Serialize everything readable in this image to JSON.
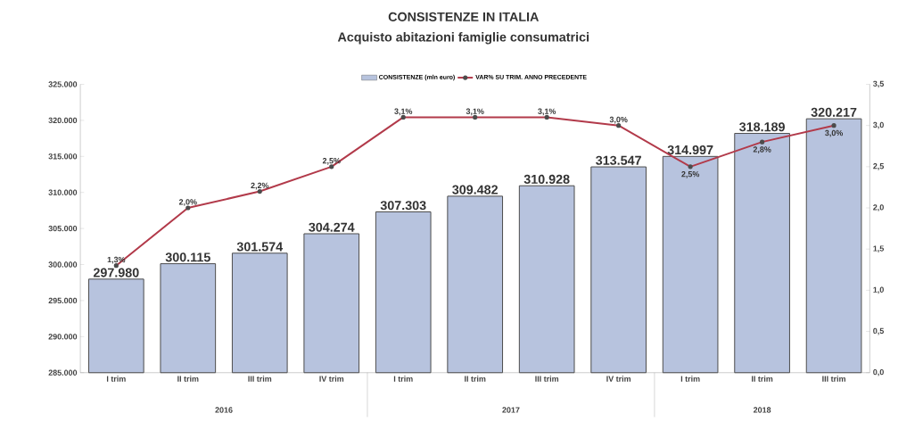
{
  "chart_data": {
    "type": "bar",
    "title": "CONSISTENZE IN ITALIA",
    "subtitle": "Acquisto abitazioni famiglie consumatrici",
    "categories": [
      "I trim",
      "II trim",
      "III trim",
      "IV trim",
      "I trim",
      "II trim",
      "III trim",
      "IV trim",
      "I trim",
      "II trim",
      "III trim"
    ],
    "series": [
      {
        "name": "CONSISTENZE (mln euro)",
        "color": "#b7c3de",
        "values": [
          297980,
          300115,
          301574,
          304274,
          307303,
          309482,
          310928,
          313547,
          314997,
          318189,
          320217
        ],
        "value_labels": [
          "297.980",
          "300.115",
          "301.574",
          "304.274",
          "307.303",
          "309.482",
          "310.928",
          "313.547",
          "314.997",
          "318.189",
          "320.217"
        ]
      },
      {
        "name": "VAR% SU TRIM. ANNO PRECEDENTE",
        "type": "line",
        "axis": "y2",
        "color": "#b23a4a",
        "marker": "circle",
        "values": [
          1.3,
          2.0,
          2.2,
          2.5,
          3.1,
          3.1,
          3.1,
          3.0,
          2.5,
          2.8,
          3.0
        ],
        "value_labels": [
          "1,3%",
          "2,0%",
          "2,2%",
          "2,5%",
          "3,1%",
          "3,1%",
          "3,1%",
          "3,0%",
          "2,5%",
          "2,8%",
          "3,0%"
        ]
      }
    ],
    "ylim": [
      285000,
      325000
    ],
    "yticks": [
      {
        "value": 285000,
        "label": "285.000"
      },
      {
        "value": 290000,
        "label": "290.000"
      },
      {
        "value": 295000,
        "label": "295.000"
      },
      {
        "value": 300000,
        "label": "300.000"
      },
      {
        "value": 305000,
        "label": "305.000"
      },
      {
        "value": 310000,
        "label": "310.000"
      },
      {
        "value": 315000,
        "label": "315.000"
      },
      {
        "value": 320000,
        "label": "320.000"
      },
      {
        "value": 325000,
        "label": "325.000"
      }
    ],
    "y2lim": [
      0,
      3.5
    ],
    "y2ticks": [
      {
        "value": 0,
        "label": "0,0"
      },
      {
        "value": 0.5,
        "label": "0,5"
      },
      {
        "value": 1.0,
        "label": "1,0"
      },
      {
        "value": 1.5,
        "label": "1,5"
      },
      {
        "value": 2.0,
        "label": "2,0"
      },
      {
        "value": 2.5,
        "label": "2,5"
      },
      {
        "value": 3.0,
        "label": "3,0"
      },
      {
        "value": 3.5,
        "label": "3,5"
      }
    ],
    "legend": "top",
    "annotations": [
      "2016",
      "2017",
      "2018"
    ]
  }
}
